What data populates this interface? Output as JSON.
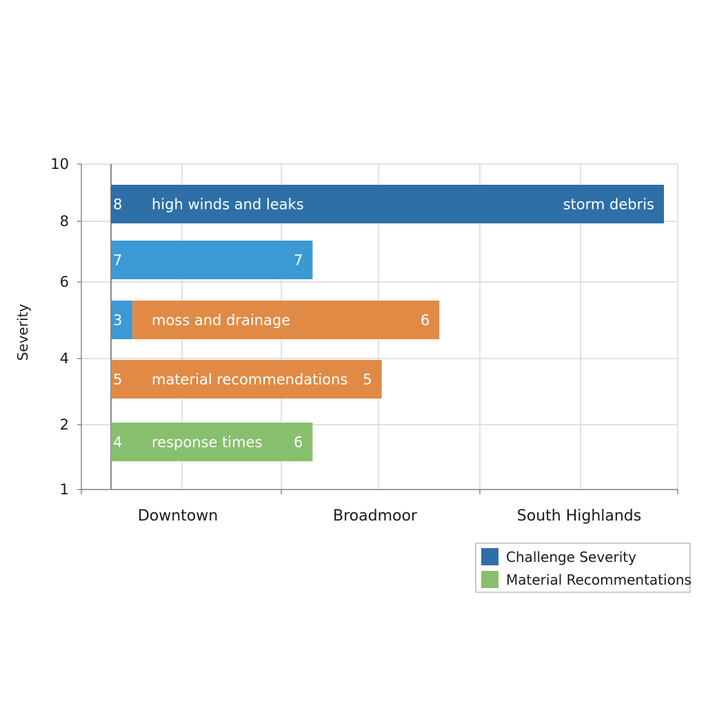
{
  "chart_data": {
    "type": "bar",
    "orientation": "horizontal",
    "ylabel": "Severity",
    "y_ticks": [
      "10",
      "8",
      "6",
      "4",
      "2",
      "1"
    ],
    "x_categories": [
      "Downtown",
      "Broadmoor",
      "South Highlands"
    ],
    "legend": {
      "placement": "bottom-right",
      "entries": [
        {
          "label": "Challenge Severity",
          "color": "#2e6fa7"
        },
        {
          "label": "Material Recommentations",
          "color": "#88bf6e"
        }
      ]
    },
    "colors": {
      "blue_dark": "#2e6fa7",
      "blue_light": "#3b9ad3",
      "orange": "#e08a45",
      "green": "#88bf6e",
      "grid": "#d8d8d8",
      "axis": "#888888"
    },
    "bars": [
      {
        "start_label": "8",
        "mid_label": "high winds and leaks",
        "end_label": "storm debris",
        "end": 9.6,
        "segments": [
          {
            "from": 0,
            "to": 9.6,
            "color": "blue_dark"
          }
        ]
      },
      {
        "start_label": "7",
        "mid_label": "",
        "end_label": "7",
        "end": 3.5,
        "segments": [
          {
            "from": 0,
            "to": 3.5,
            "color": "blue_light"
          }
        ]
      },
      {
        "start_label": "3",
        "mid_label": "moss and drainage",
        "end_label": "6",
        "end": 5.7,
        "segments": [
          {
            "from": 0,
            "to": 0.37,
            "color": "blue_light"
          },
          {
            "from": 0.37,
            "to": 5.7,
            "color": "orange"
          }
        ]
      },
      {
        "start_label": "5",
        "mid_label": "material recommendations",
        "end_label": "5",
        "end": 4.7,
        "segments": [
          {
            "from": 0,
            "to": 4.7,
            "color": "orange"
          }
        ]
      },
      {
        "start_label": "4",
        "mid_label": "response times",
        "end_label": "6",
        "end": 3.5,
        "segments": [
          {
            "from": 0,
            "to": 3.5,
            "color": "green"
          }
        ]
      }
    ]
  }
}
